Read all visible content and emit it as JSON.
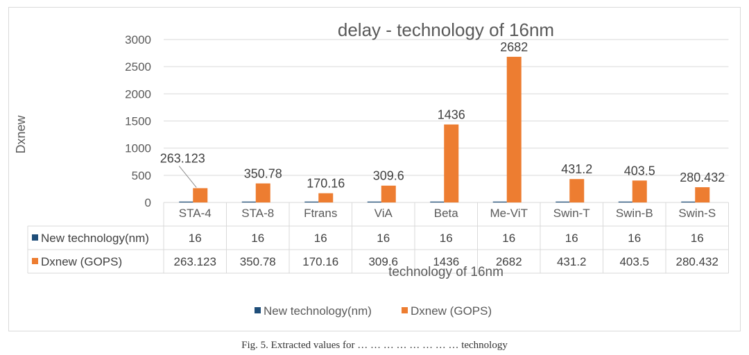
{
  "chart_data": {
    "type": "bar",
    "title": "delay - technology of 16nm",
    "xlabel": "technology of 16nm",
    "ylabel": "Dxnew",
    "ylim": [
      0,
      3000
    ],
    "yticks": [
      0,
      500,
      1000,
      1500,
      2000,
      2500,
      3000
    ],
    "grid": true,
    "legend": "bottom",
    "categories": [
      "STA-4",
      "STA-8",
      "Ftrans",
      "ViA",
      "Beta",
      "Me-ViT",
      "Swin-T",
      "Swin-B",
      "Swin-S"
    ],
    "series": [
      {
        "name": "New technology(nm)",
        "color": "#1f4e79",
        "values": [
          16,
          16,
          16,
          16,
          16,
          16,
          16,
          16,
          16
        ],
        "value_labels": [
          "16",
          "16",
          "16",
          "16",
          "16",
          "16",
          "16",
          "16",
          "16"
        ]
      },
      {
        "name": "Dxnew (GOPS)",
        "color": "#ed7d31",
        "values": [
          263.123,
          350.78,
          170.16,
          309.6,
          1436,
          2682,
          431.2,
          403.5,
          280.432
        ],
        "value_labels": [
          "263.123",
          "350.78",
          "170.16",
          "309.6",
          "1436",
          "2682",
          "431.2",
          "403.5",
          "280.432"
        ]
      }
    ]
  },
  "caption": "Fig. 5.  Extracted values for … … … … … … … … technology"
}
